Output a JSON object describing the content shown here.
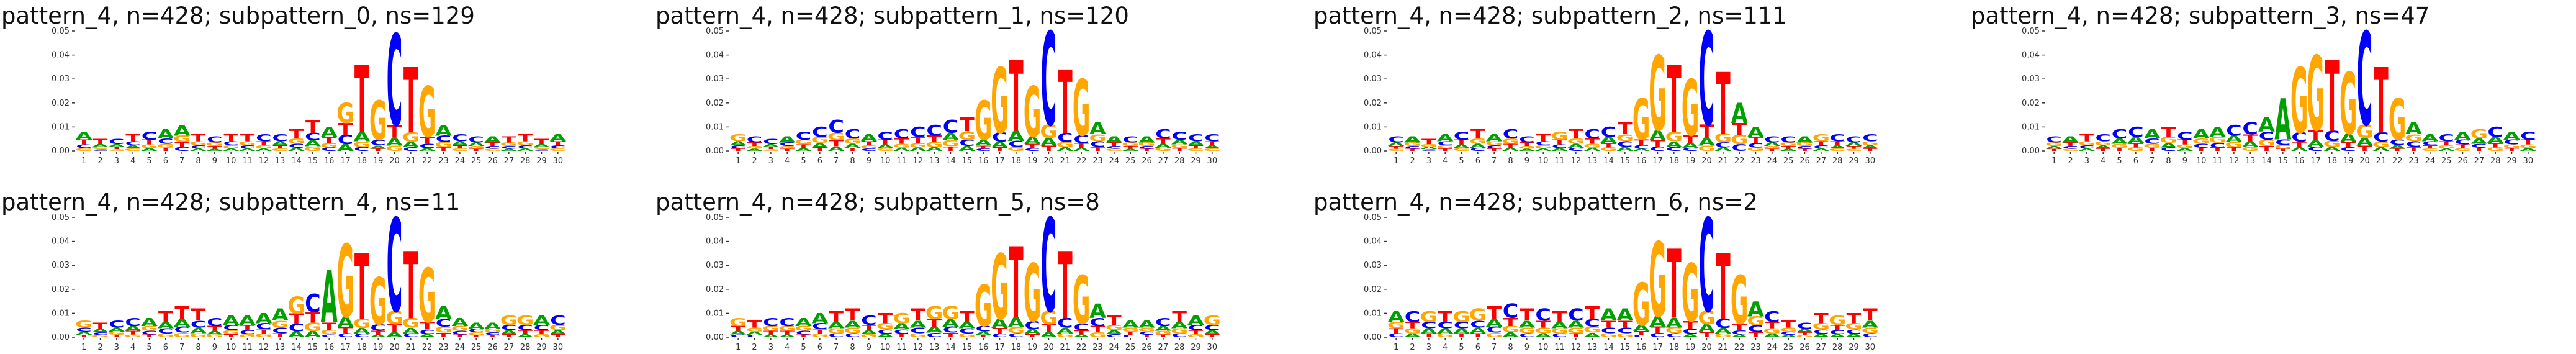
{
  "colors": {
    "A": "#00a000",
    "C": "#0000ff",
    "G": "#ffa600",
    "T": "#ff0000"
  },
  "chart_data": [
    {
      "type": "logo",
      "title": "pattern_4, n=428; subpattern_0, ns=129",
      "ylim": [
        0,
        0.05
      ],
      "y_ticks": [
        "0.00",
        "0.01",
        "0.02",
        "0.03",
        "0.04",
        "0.05"
      ],
      "x_ticks": [
        "1",
        "2",
        "3",
        "4",
        "5",
        "6",
        "7",
        "8",
        "9",
        "10",
        "11",
        "12",
        "13",
        "14",
        "15",
        "16",
        "17",
        "18",
        "19",
        "20",
        "21",
        "22",
        "23",
        "24",
        "25",
        "26",
        "27",
        "28",
        "29",
        "30"
      ],
      "heights": [
        0.008,
        0.005,
        0.005,
        0.007,
        0.008,
        0.009,
        0.011,
        0.007,
        0.006,
        0.007,
        0.007,
        0.007,
        0.007,
        0.009,
        0.013,
        0.01,
        0.02,
        0.036,
        0.021,
        0.049,
        0.035,
        0.027,
        0.011,
        0.007,
        0.006,
        0.006,
        0.006,
        0.007,
        0.005,
        0.007
      ],
      "top": [
        "A",
        "T",
        "C",
        "T",
        "C",
        "A",
        "A",
        "T",
        "C",
        "T",
        "T",
        "C",
        "C",
        "T",
        "T",
        "A",
        "G",
        "T",
        "G",
        "C",
        "T",
        "G",
        "A",
        "C",
        "C",
        "A",
        "T",
        "T",
        "T",
        "A"
      ]
    },
    {
      "type": "logo",
      "title": "pattern_4, n=428; subpattern_1, ns=120",
      "ylim": [
        0,
        0.05
      ],
      "y_ticks": [
        "0.00",
        "0.01",
        "0.02",
        "0.03",
        "0.04",
        "0.05"
      ],
      "x_ticks": [
        "1",
        "2",
        "3",
        "4",
        "5",
        "6",
        "7",
        "8",
        "9",
        "10",
        "11",
        "12",
        "13",
        "14",
        "15",
        "16",
        "17",
        "18",
        "19",
        "20",
        "21",
        "22",
        "23",
        "24",
        "25",
        "26",
        "27",
        "28",
        "29",
        "30"
      ],
      "heights": [
        0.007,
        0.006,
        0.005,
        0.006,
        0.008,
        0.01,
        0.013,
        0.009,
        0.007,
        0.008,
        0.009,
        0.01,
        0.011,
        0.013,
        0.014,
        0.021,
        0.035,
        0.038,
        0.027,
        0.05,
        0.034,
        0.03,
        0.012,
        0.006,
        0.006,
        0.006,
        0.009,
        0.008,
        0.007,
        0.007
      ],
      "top": [
        "G",
        "C",
        "C",
        "A",
        "C",
        "C",
        "C",
        "C",
        "A",
        "C",
        "C",
        "C",
        "C",
        "C",
        "T",
        "G",
        "G",
        "T",
        "G",
        "C",
        "T",
        "G",
        "A",
        "A",
        "C",
        "A",
        "C",
        "C",
        "C",
        "C"
      ]
    },
    {
      "type": "logo",
      "title": "pattern_4, n=428; subpattern_2, ns=111",
      "ylim": [
        0,
        0.05
      ],
      "y_ticks": [
        "0.00",
        "0.01",
        "0.02",
        "0.03",
        "0.04",
        "0.05"
      ],
      "x_ticks": [
        "1",
        "2",
        "3",
        "4",
        "5",
        "6",
        "7",
        "8",
        "9",
        "10",
        "11",
        "12",
        "13",
        "14",
        "15",
        "16",
        "17",
        "18",
        "19",
        "20",
        "21",
        "22",
        "23",
        "24",
        "25",
        "26",
        "27",
        "28",
        "29",
        "30"
      ],
      "heights": [
        0.006,
        0.006,
        0.005,
        0.007,
        0.008,
        0.009,
        0.007,
        0.009,
        0.006,
        0.007,
        0.008,
        0.009,
        0.009,
        0.01,
        0.012,
        0.022,
        0.04,
        0.036,
        0.03,
        0.05,
        0.033,
        0.02,
        0.01,
        0.006,
        0.006,
        0.006,
        0.007,
        0.007,
        0.006,
        0.007
      ],
      "top": [
        "C",
        "A",
        "T",
        "A",
        "C",
        "T",
        "A",
        "C",
        "C",
        "T",
        "G",
        "T",
        "C",
        "C",
        "T",
        "G",
        "G",
        "T",
        "G",
        "C",
        "T",
        "A",
        "A",
        "C",
        "C",
        "A",
        "G",
        "C",
        "C",
        "C"
      ]
    },
    {
      "type": "logo",
      "title": "pattern_4, n=428; subpattern_3, ns=47",
      "ylim": [
        0,
        0.05
      ],
      "y_ticks": [
        "0.00",
        "0.01",
        "0.02",
        "0.03",
        "0.04",
        "0.05"
      ],
      "x_ticks": [
        "1",
        "2",
        "3",
        "4",
        "5",
        "6",
        "7",
        "8",
        "9",
        "10",
        "11",
        "12",
        "13",
        "14",
        "15",
        "16",
        "17",
        "18",
        "19",
        "20",
        "21",
        "22",
        "23",
        "24",
        "25",
        "26",
        "27",
        "28",
        "29",
        "30"
      ],
      "heights": [
        0.006,
        0.006,
        0.007,
        0.007,
        0.009,
        0.01,
        0.009,
        0.01,
        0.008,
        0.009,
        0.01,
        0.011,
        0.012,
        0.014,
        0.022,
        0.035,
        0.04,
        0.038,
        0.033,
        0.05,
        0.035,
        0.022,
        0.012,
        0.007,
        0.007,
        0.008,
        0.009,
        0.01,
        0.008,
        0.008
      ],
      "top": [
        "C",
        "A",
        "T",
        "C",
        "C",
        "C",
        "A",
        "T",
        "C",
        "A",
        "A",
        "C",
        "C",
        "A",
        "A",
        "G",
        "G",
        "T",
        "G",
        "C",
        "T",
        "G",
        "A",
        "A",
        "C",
        "A",
        "G",
        "C",
        "A",
        "C"
      ]
    },
    {
      "type": "logo",
      "title": "pattern_4, n=428; subpattern_4, ns=11",
      "ylim": [
        0,
        0.05
      ],
      "y_ticks": [
        "0.00",
        "0.01",
        "0.02",
        "0.03",
        "0.04",
        "0.05"
      ],
      "x_ticks": [
        "1",
        "2",
        "3",
        "4",
        "5",
        "6",
        "7",
        "8",
        "9",
        "10",
        "11",
        "12",
        "13",
        "14",
        "15",
        "16",
        "17",
        "18",
        "19",
        "20",
        "21",
        "22",
        "23",
        "24",
        "25",
        "26",
        "27",
        "28",
        "29",
        "30"
      ],
      "heights": [
        0.007,
        0.006,
        0.007,
        0.008,
        0.008,
        0.011,
        0.013,
        0.012,
        0.008,
        0.009,
        0.009,
        0.01,
        0.012,
        0.017,
        0.018,
        0.028,
        0.039,
        0.035,
        0.025,
        0.05,
        0.036,
        0.029,
        0.013,
        0.008,
        0.006,
        0.006,
        0.009,
        0.009,
        0.009,
        0.009
      ],
      "top": [
        "G",
        "T",
        "C",
        "C",
        "A",
        "T",
        "T",
        "T",
        "C",
        "A",
        "A",
        "A",
        "A",
        "G",
        "C",
        "A",
        "G",
        "T",
        "G",
        "C",
        "T",
        "G",
        "A",
        "A",
        "A",
        "A",
        "G",
        "G",
        "A",
        "C"
      ]
    },
    {
      "type": "logo",
      "title": "pattern_4, n=428; subpattern_5, ns=8",
      "ylim": [
        0,
        0.05
      ],
      "y_ticks": [
        "0.00",
        "0.01",
        "0.02",
        "0.03",
        "0.04",
        "0.05"
      ],
      "x_ticks": [
        "1",
        "2",
        "3",
        "4",
        "5",
        "6",
        "7",
        "8",
        "9",
        "10",
        "11",
        "12",
        "13",
        "14",
        "15",
        "16",
        "17",
        "18",
        "19",
        "20",
        "21",
        "22",
        "23",
        "24",
        "25",
        "26",
        "27",
        "28",
        "29",
        "30"
      ],
      "heights": [
        0.008,
        0.007,
        0.008,
        0.008,
        0.008,
        0.01,
        0.011,
        0.012,
        0.009,
        0.01,
        0.01,
        0.012,
        0.013,
        0.013,
        0.011,
        0.022,
        0.035,
        0.038,
        0.031,
        0.05,
        0.036,
        0.026,
        0.014,
        0.009,
        0.007,
        0.007,
        0.008,
        0.011,
        0.009,
        0.009
      ],
      "top": [
        "G",
        "T",
        "C",
        "C",
        "A",
        "A",
        "T",
        "T",
        "C",
        "T",
        "G",
        "T",
        "G",
        "G",
        "T",
        "G",
        "G",
        "T",
        "G",
        "C",
        "T",
        "G",
        "A",
        "T",
        "A",
        "A",
        "C",
        "T",
        "A",
        "G"
      ]
    },
    {
      "type": "logo",
      "title": "pattern_4, n=428; subpattern_6, ns=2",
      "ylim": [
        0,
        0.05
      ],
      "y_ticks": [
        "0.00",
        "0.01",
        "0.02",
        "0.03",
        "0.04",
        "0.05"
      ],
      "x_ticks": [
        "1",
        "2",
        "3",
        "4",
        "5",
        "6",
        "7",
        "8",
        "9",
        "10",
        "11",
        "12",
        "13",
        "14",
        "15",
        "16",
        "17",
        "18",
        "19",
        "20",
        "21",
        "22",
        "23",
        "24",
        "25",
        "26",
        "27",
        "28",
        "29",
        "30"
      ],
      "heights": [
        0.011,
        0.011,
        0.011,
        0.011,
        0.011,
        0.012,
        0.013,
        0.014,
        0.012,
        0.012,
        0.011,
        0.012,
        0.013,
        0.012,
        0.012,
        0.023,
        0.04,
        0.037,
        0.031,
        0.05,
        0.035,
        0.026,
        0.015,
        0.011,
        0.007,
        0.006,
        0.01,
        0.009,
        0.01,
        0.012
      ],
      "top": [
        "A",
        "C",
        "G",
        "T",
        "G",
        "G",
        "T",
        "C",
        "T",
        "C",
        "T",
        "C",
        "T",
        "A",
        "A",
        "G",
        "G",
        "T",
        "G",
        "C",
        "T",
        "G",
        "A",
        "C",
        "T",
        "C",
        "T",
        "G",
        "T",
        "T"
      ]
    }
  ]
}
